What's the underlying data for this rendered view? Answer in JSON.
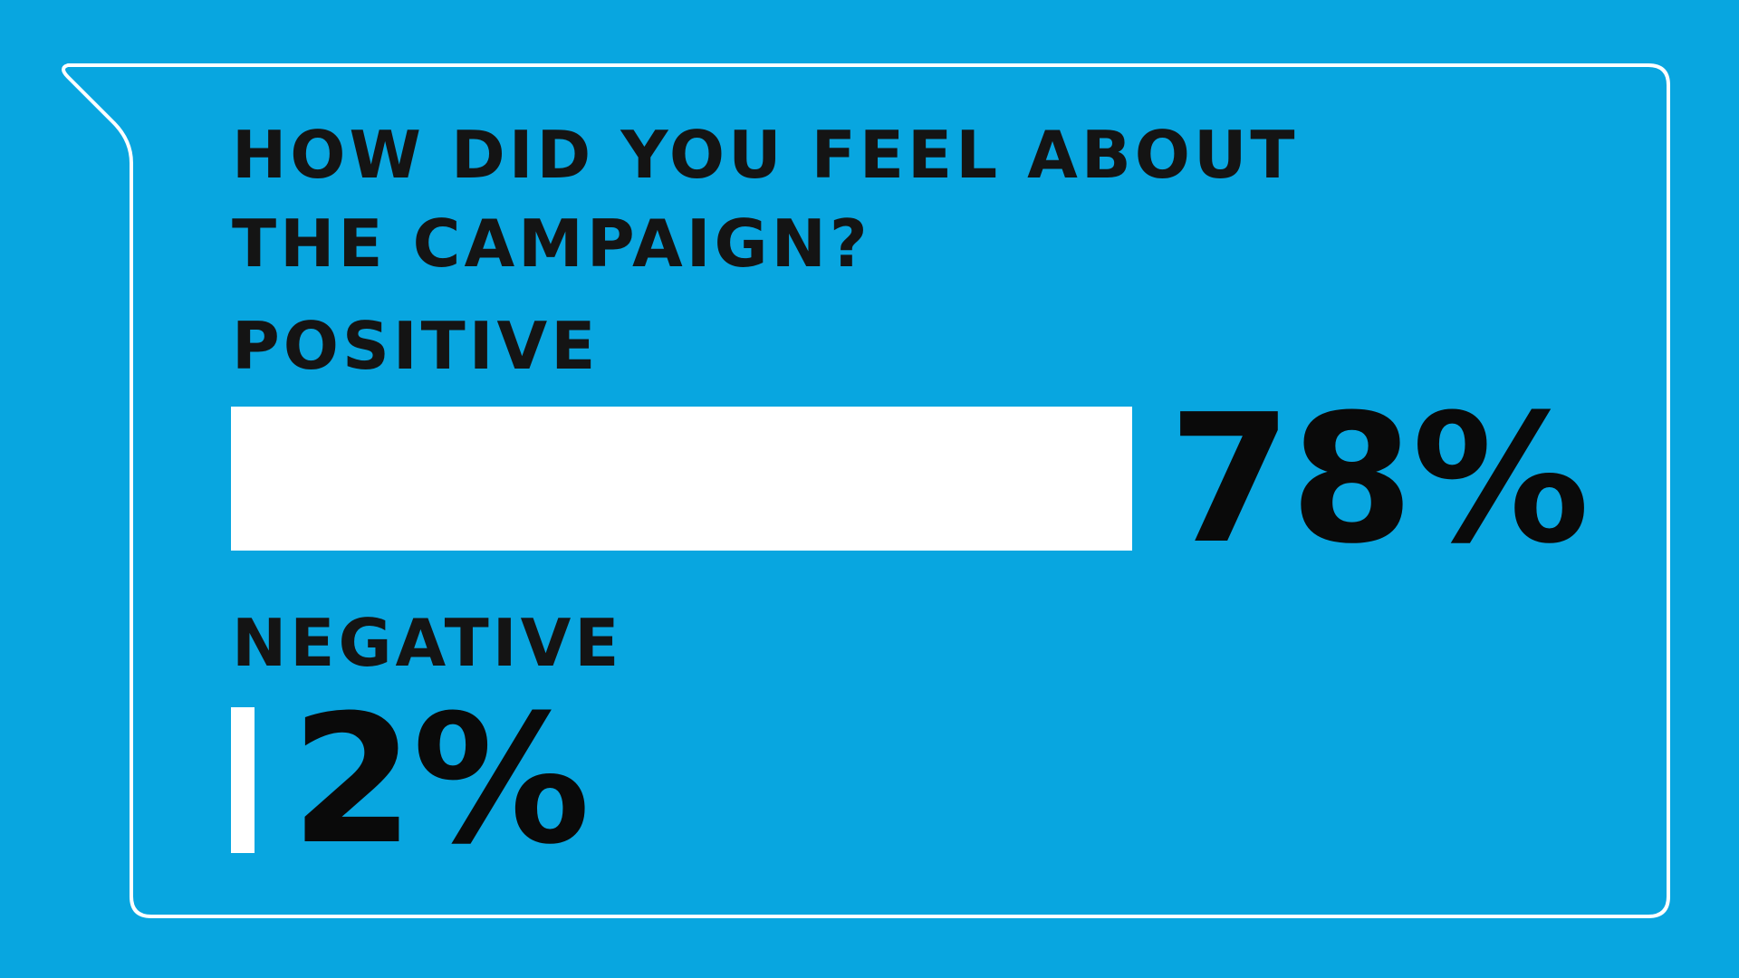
{
  "chart_data": {
    "type": "bar",
    "orientation": "horizontal",
    "title": "HOW DID YOU FEEL ABOUT THE CAMPAIGN?",
    "categories": [
      "POSITIVE",
      "NEGATIVE"
    ],
    "values": [
      78,
      2
    ],
    "value_labels": [
      "78%",
      "2%"
    ],
    "xlim": [
      0,
      100
    ],
    "grid": false,
    "legend": "none"
  },
  "colors": {
    "background": "#08a6e0",
    "bar": "#ffffff",
    "text": "#141414",
    "outline": "#ffffff"
  },
  "decor": {
    "frame_icon": "speech-bubble-outline"
  }
}
